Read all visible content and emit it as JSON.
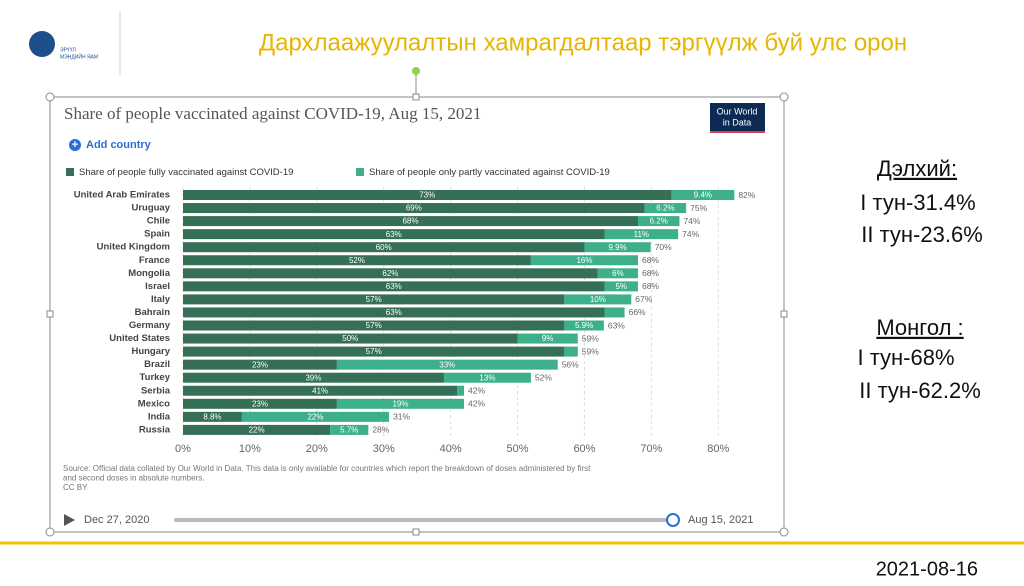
{
  "header": {
    "title": "Дархлаажуулалтын хамрагдалтаар тэргүүлж буй улс орон",
    "logo_text": [
      "ЭРҮҮЛ",
      "МЭНДИЙН ЯАМ"
    ]
  },
  "chart_data": {
    "type": "stacked_barh",
    "title": "Share of people vaccinated against COVID-19, Aug 15, 2021",
    "brand": [
      "Our World",
      "in Data"
    ],
    "add_country": "Add country",
    "categories": [
      "United Arab Emirates",
      "Uruguay",
      "Chile",
      "Spain",
      "United Kingdom",
      "France",
      "Mongolia",
      "Israel",
      "Italy",
      "Bahrain",
      "Germany",
      "United States",
      "Hungary",
      "Brazil",
      "Turkey",
      "Serbia",
      "Mexico",
      "India",
      "Russia"
    ],
    "series": [
      {
        "name": "Share of people fully vaccinated against COVID-19",
        "color": "#346f56",
        "values": [
          73,
          69,
          68,
          63,
          60,
          52,
          62,
          63,
          57,
          63,
          57,
          50,
          57,
          23,
          39,
          41,
          23,
          8.8,
          22
        ],
        "value_labels": [
          "73%",
          "69%",
          "68%",
          "63%",
          "60%",
          "52%",
          "62%",
          "63%",
          "57%",
          "63%",
          "57%",
          "50%",
          "57%",
          "23%",
          "39%",
          "41%",
          "23%",
          "8.8%",
          "22%"
        ]
      },
      {
        "name": "Share of people only partly vaccinated against COVID-19",
        "color": "#3db08b",
        "values": [
          9.4,
          6.2,
          6.2,
          11,
          9.9,
          16,
          6,
          5,
          10,
          3,
          5.9,
          9,
          2,
          33,
          13,
          1,
          19,
          22,
          5.7
        ],
        "value_labels": [
          "9.4%",
          "6.2%",
          "6.2%",
          "11%",
          "9.9%",
          "16%",
          "6%",
          "5%",
          "10%",
          null,
          "5.9%",
          "9%",
          null,
          "33%",
          "13%",
          null,
          "19%",
          "22%",
          "5.7%"
        ]
      }
    ],
    "totals": {
      "values": [
        82,
        75,
        74,
        74,
        70,
        68,
        68,
        68,
        67,
        66,
        63,
        59,
        59,
        56,
        52,
        42,
        42,
        31,
        28
      ],
      "value_labels": [
        "82%",
        "75%",
        "74%",
        "74%",
        "70%",
        "68%",
        "68%",
        "68%",
        "67%",
        "66%",
        "63%",
        "59%",
        "59%",
        "56%",
        "52%",
        "42%",
        "42%",
        "31%",
        "28%"
      ]
    },
    "xlim": [
      0,
      82.5
    ],
    "xticks": [
      {
        "value": 0,
        "label": "0%"
      },
      {
        "value": 10,
        "label": "10%"
      },
      {
        "value": 20,
        "label": "20%"
      },
      {
        "value": 30,
        "label": "30%"
      },
      {
        "value": 40,
        "label": "40%"
      },
      {
        "value": 50,
        "label": "50%"
      },
      {
        "value": 60,
        "label": "60%"
      },
      {
        "value": 70,
        "label": "70%"
      },
      {
        "value": 80,
        "label": "80%"
      }
    ],
    "grid": true,
    "source": [
      "Source: Official data collated by Our World in Data. This data is only available for countries which report the breakdown of doses administered by first",
      "and second doses in absolute numbers.",
      "CC BY"
    ],
    "timeline": [
      "Dec 27, 2020",
      "Aug 15, 2021"
    ]
  },
  "side": {
    "world": {
      "heading": "Дэлхий:",
      "lines": [
        "I тун-31.4%",
        "II тун-23.6%"
      ]
    },
    "mongolia": {
      "heading": "Монгол :",
      "lines": [
        "I тун-68%",
        "II тун-62.2%"
      ]
    }
  },
  "date": "2021-08-16"
}
